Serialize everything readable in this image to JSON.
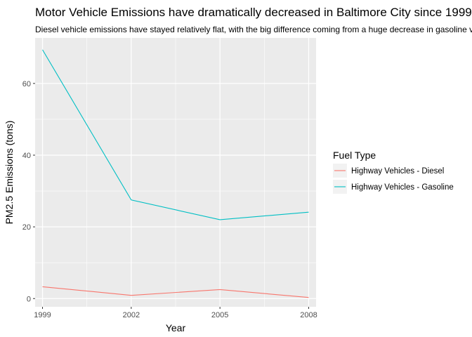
{
  "chart_data": {
    "type": "line",
    "title": "Motor Vehicle Emissions have dramatically decreased in Baltimore City since 1999",
    "subtitle": "Diesel vehicle emissions have stayed relatively flat, with the big difference coming from a huge decrease in gasoline vehicle emissions",
    "xlabel": "Year",
    "ylabel": "PM2.5 Emissions (tons)",
    "x": [
      1999,
      2002,
      2005,
      2008
    ],
    "xlim": [
      1998.75,
      2008.25
    ],
    "ylim": [
      -2.3,
      72.7
    ],
    "xticks": [
      "1999",
      "2002",
      "2005",
      "2008"
    ],
    "yticks": [
      0,
      20,
      40,
      60
    ],
    "grid": true,
    "legend": {
      "title": "Fuel Type",
      "placement": "right"
    },
    "series": [
      {
        "name": "Highway Vehicles - Diesel",
        "color": "#F8766D",
        "values": [
          3.3,
          0.9,
          2.5,
          0.3
        ]
      },
      {
        "name": "Highway Vehicles - Gasoline",
        "color": "#00BFC4",
        "values": [
          69.4,
          27.5,
          22.0,
          24.1
        ]
      }
    ]
  }
}
